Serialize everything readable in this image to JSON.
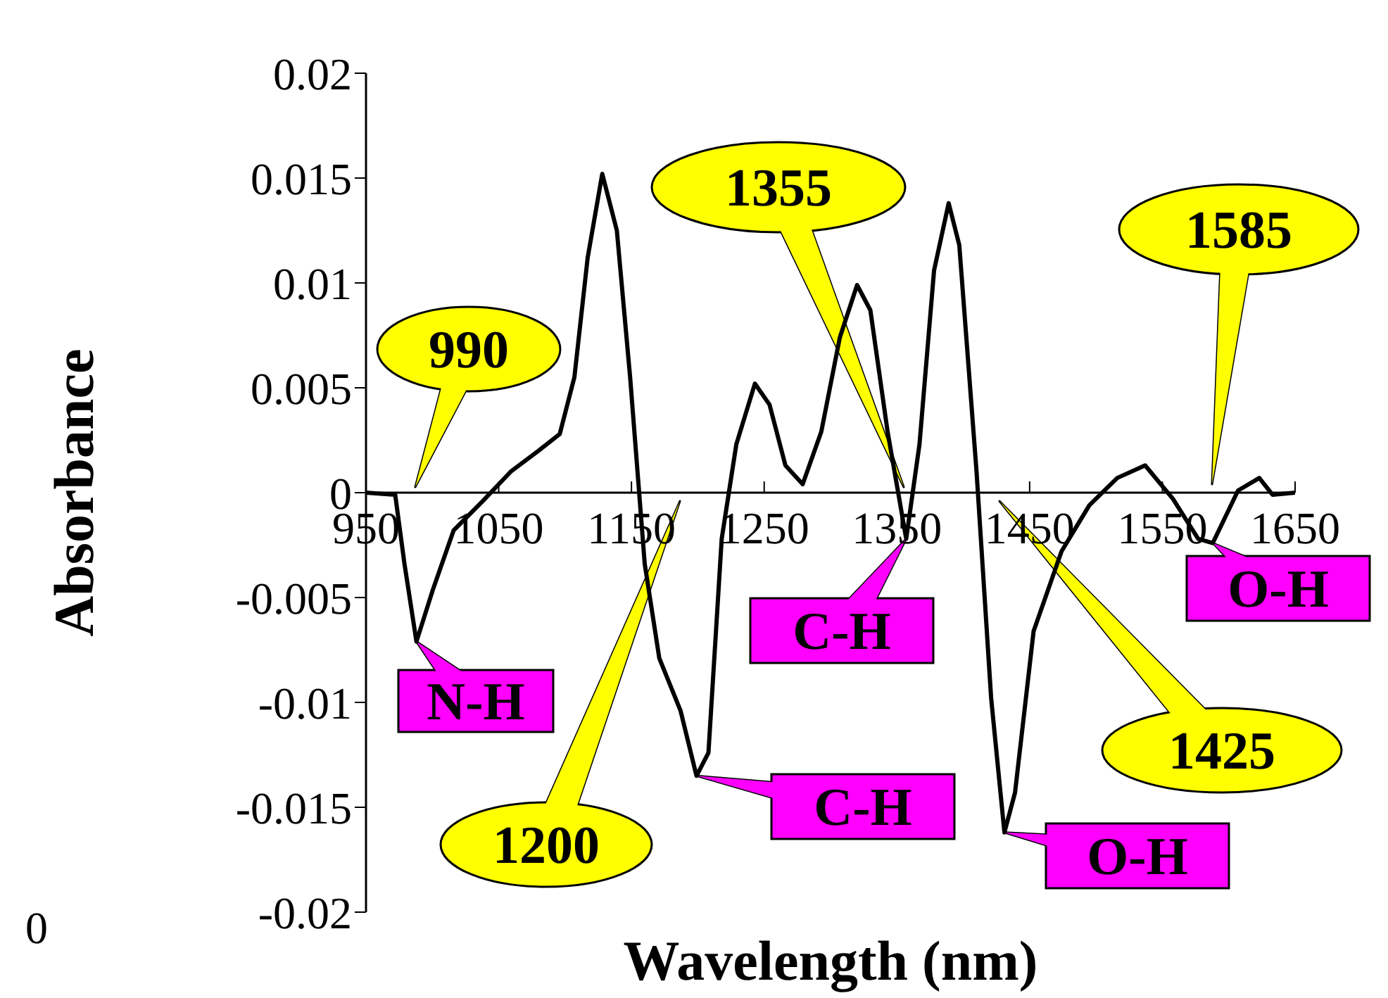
{
  "chart_data": {
    "type": "line",
    "xlabel": "Wavelength (nm)",
    "ylabel": "Absorbance",
    "x": [
      950,
      972,
      979,
      988,
      1000,
      1016,
      1038,
      1059,
      1080,
      1096,
      1107,
      1117,
      1128,
      1139,
      1149,
      1160,
      1171,
      1187,
      1199,
      1208,
      1218,
      1229,
      1243,
      1254,
      1266,
      1279,
      1293,
      1307,
      1320,
      1330,
      1343,
      1357,
      1367,
      1378,
      1389,
      1397,
      1410,
      1421,
      1431,
      1439,
      1453,
      1474,
      1495,
      1516,
      1537,
      1558,
      1577,
      1588,
      1607,
      1623,
      1633,
      1650
    ],
    "series": [
      {
        "color": "#000000",
        "values": [
          0,
          -0.0001,
          -0.0034,
          -0.0071,
          -0.0047,
          -0.0018,
          -0.0004,
          0.001,
          0.002,
          0.0028,
          0.0055,
          0.0112,
          0.0152,
          0.0125,
          0.0055,
          -0.0034,
          -0.0079,
          -0.0104,
          -0.0135,
          -0.0124,
          -0.0022,
          0.0023,
          0.0052,
          0.0042,
          0.0013,
          0.0004,
          0.0029,
          0.0074,
          0.0099,
          0.0087,
          0.0029,
          -0.0022,
          0.0023,
          0.0106,
          0.0138,
          0.0118,
          0.001,
          -0.0098,
          -0.0162,
          -0.0143,
          -0.0066,
          -0.0028,
          -0.0006,
          0.0007,
          0.0013,
          -0.0003,
          -0.0022,
          -0.0024,
          0.0001,
          0.0007,
          -0.0001,
          0
        ]
      }
    ],
    "xlim": [
      950,
      1650
    ],
    "xticks": [
      950,
      1050,
      1150,
      1250,
      1350,
      1450,
      1550,
      1650
    ],
    "ylim": [
      -0.02,
      0.02
    ],
    "yticks": [
      -0.02,
      -0.015,
      -0.01,
      -0.005,
      0,
      0.005,
      0.01,
      0.015,
      0.02
    ],
    "grid": false,
    "legend": false,
    "marker": "none",
    "line_style": "solid",
    "annotations": [
      "990",
      {
        "text": "N-H",
        "x": 988,
        "y": -0.0071
      },
      {
        "text": "C-H",
        "x": 1357,
        "y": -0.0022
      },
      "1200",
      {
        "text": "C-H",
        "x": 1199,
        "y": -0.0135
      },
      "1355",
      {
        "text": "O-H",
        "x": 1588,
        "y": -0.0024
      },
      "1585",
      "1425",
      {
        "text": "O-H",
        "x": 1431,
        "y": -0.0162
      },
      "0"
    ]
  }
}
